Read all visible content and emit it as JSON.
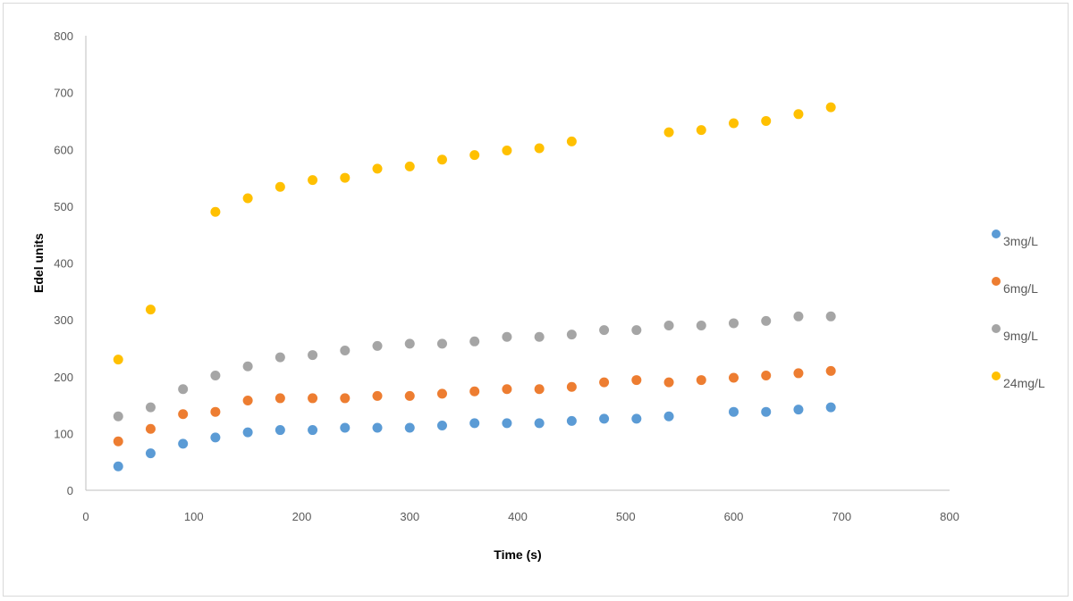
{
  "chart_data": {
    "type": "scatter",
    "title": "",
    "xlabel": "Time (s)",
    "ylabel": "Edel units",
    "xlim": [
      0,
      800
    ],
    "ylim": [
      0,
      800
    ],
    "x_ticks": [
      0,
      100,
      200,
      300,
      400,
      500,
      600,
      700,
      800
    ],
    "y_ticks": [
      0,
      100,
      200,
      300,
      400,
      500,
      600,
      700,
      800
    ],
    "grid": false,
    "legend_position": "right",
    "series": [
      {
        "name": "3mg/L",
        "color": "#5b9bd5",
        "points": [
          [
            30,
            42
          ],
          [
            60,
            65
          ],
          [
            90,
            82
          ],
          [
            120,
            93
          ],
          [
            150,
            102
          ],
          [
            180,
            106
          ],
          [
            210,
            106
          ],
          [
            240,
            110
          ],
          [
            270,
            110
          ],
          [
            300,
            110
          ],
          [
            330,
            114
          ],
          [
            360,
            118
          ],
          [
            390,
            118
          ],
          [
            420,
            118
          ],
          [
            450,
            122
          ],
          [
            480,
            126
          ],
          [
            510,
            126
          ],
          [
            540,
            130
          ],
          [
            600,
            138
          ],
          [
            630,
            138
          ],
          [
            660,
            142
          ],
          [
            690,
            146
          ]
        ]
      },
      {
        "name": "6mg/L",
        "color": "#ed7d31",
        "points": [
          [
            30,
            86
          ],
          [
            60,
            108
          ],
          [
            90,
            134
          ],
          [
            120,
            138
          ],
          [
            150,
            158
          ],
          [
            180,
            162
          ],
          [
            210,
            162
          ],
          [
            240,
            162
          ],
          [
            270,
            166
          ],
          [
            300,
            166
          ],
          [
            330,
            170
          ],
          [
            360,
            174
          ],
          [
            390,
            178
          ],
          [
            420,
            178
          ],
          [
            450,
            182
          ],
          [
            480,
            190
          ],
          [
            510,
            194
          ],
          [
            540,
            190
          ],
          [
            570,
            194
          ],
          [
            600,
            198
          ],
          [
            630,
            202
          ],
          [
            660,
            206
          ],
          [
            690,
            210
          ]
        ]
      },
      {
        "name": "9mg/L",
        "color": "#a5a5a5",
        "points": [
          [
            30,
            130
          ],
          [
            60,
            146
          ],
          [
            90,
            178
          ],
          [
            120,
            202
          ],
          [
            150,
            218
          ],
          [
            180,
            234
          ],
          [
            210,
            238
          ],
          [
            240,
            246
          ],
          [
            270,
            254
          ],
          [
            300,
            258
          ],
          [
            330,
            258
          ],
          [
            360,
            262
          ],
          [
            390,
            270
          ],
          [
            420,
            270
          ],
          [
            450,
            274
          ],
          [
            480,
            282
          ],
          [
            510,
            282
          ],
          [
            540,
            290
          ],
          [
            570,
            290
          ],
          [
            600,
            294
          ],
          [
            630,
            298
          ],
          [
            660,
            306
          ],
          [
            690,
            306
          ]
        ]
      },
      {
        "name": "24mg/L",
        "color": "#ffc000",
        "points": [
          [
            30,
            230
          ],
          [
            60,
            318
          ],
          [
            120,
            490
          ],
          [
            150,
            514
          ],
          [
            180,
            534
          ],
          [
            210,
            546
          ],
          [
            240,
            550
          ],
          [
            270,
            566
          ],
          [
            300,
            570
          ],
          [
            330,
            582
          ],
          [
            360,
            590
          ],
          [
            390,
            598
          ],
          [
            420,
            602
          ],
          [
            450,
            614
          ],
          [
            540,
            630
          ],
          [
            570,
            634
          ],
          [
            600,
            646
          ],
          [
            630,
            650
          ],
          [
            660,
            662
          ],
          [
            690,
            674
          ]
        ]
      }
    ]
  }
}
